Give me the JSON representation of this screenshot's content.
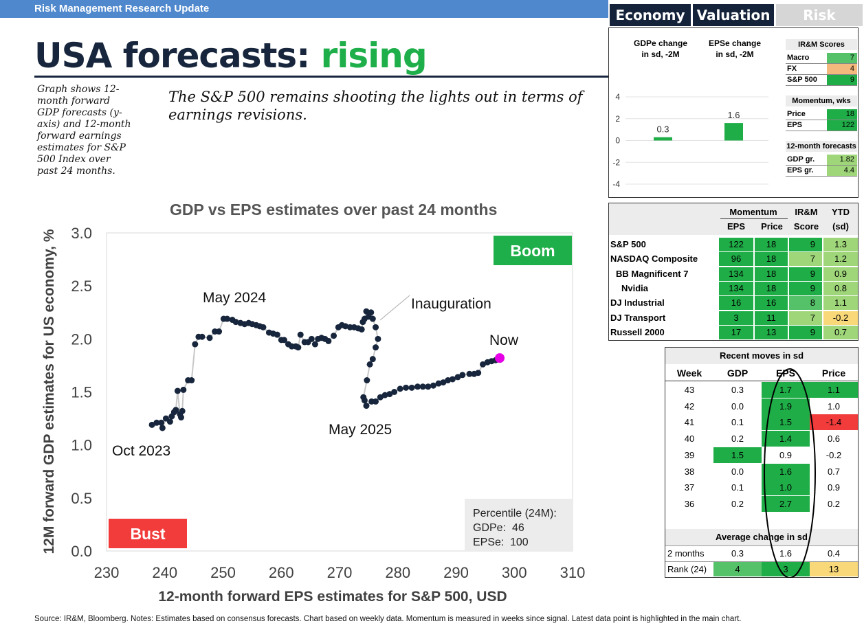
{
  "header": {
    "banner": "Risk Management Research Update",
    "title_main": "USA forecasts: ",
    "title_accent": "rising",
    "note": "Graph shows 12-month forward GDP forecasts (y-axis) and 12-month forward earnings estimates for S&P 500 Index over past 24 months.",
    "headline": "The S&P 500 remains shooting the lights out in terms of earnings revisions."
  },
  "tabs": [
    {
      "label": "Economy"
    },
    {
      "label": "Valuation"
    },
    {
      "label": "Risk"
    }
  ],
  "mini_chart": {
    "series": [
      {
        "name": "GDPe change in sd, -2M",
        "label_line1": "GDPe change",
        "label_line2": "in sd, -2M",
        "value": 0.3,
        "value_label": "0.3"
      },
      {
        "name": "EPSe change in sd, -2M",
        "label_line1": "EPSe change",
        "label_line2": "in sd, -2M",
        "value": 1.6,
        "value_label": "1.6"
      }
    ],
    "yticks": [
      "4",
      "2",
      "0",
      "-2",
      "-4"
    ],
    "ylim": [
      -4,
      4
    ]
  },
  "scores": {
    "irm_title": "IR&M Scores",
    "irm_rows": [
      {
        "label": "Macro",
        "value": "7"
      },
      {
        "label": "FX",
        "value": "4"
      },
      {
        "label": "S&P 500",
        "value": "9"
      }
    ],
    "momentum_title": "Momentum, wks",
    "momentum_rows": [
      {
        "label": "Price",
        "value": "18"
      },
      {
        "label": "EPS",
        "value": "122"
      }
    ],
    "forecast_title": "12-month forecasts",
    "forecast_rows": [
      {
        "label": "GDP gr.",
        "value": "1.82"
      },
      {
        "label": "EPS gr.",
        "value": "4.4"
      }
    ]
  },
  "index_table": {
    "group_momentum": "Momentum",
    "group_irm": "IR&M",
    "group_ytd": "YTD",
    "sub_eps": "EPS",
    "sub_price": "Price",
    "sub_score": "Score",
    "sub_sd": "(sd)",
    "rows": [
      {
        "name": "S&P 500",
        "eps": "122",
        "price": "18",
        "score": "9",
        "ytd": "1.3"
      },
      {
        "name": "NASDAQ Composite",
        "eps": "96",
        "price": "18",
        "score": "7",
        "ytd": "1.2"
      },
      {
        "name": "BB Magnificent 7",
        "eps": "134",
        "price": "18",
        "score": "9",
        "ytd": "0.9"
      },
      {
        "name": "Nvidia",
        "eps": "134",
        "price": "18",
        "score": "9",
        "ytd": "0.8"
      },
      {
        "name": "DJ Industrial",
        "eps": "16",
        "price": "16",
        "score": "8",
        "ytd": "1.1"
      },
      {
        "name": "DJ Transport",
        "eps": "3",
        "price": "11",
        "score": "7",
        "ytd": "-0.2"
      },
      {
        "name": "Russell 2000",
        "eps": "17",
        "price": "13",
        "score": "9",
        "ytd": "0.7"
      }
    ]
  },
  "moves_table": {
    "title": "Recent moves in sd",
    "col_week": "Week",
    "col_gdp": "GDP",
    "col_eps": "EPS",
    "col_price": "Price",
    "rows": [
      {
        "week": "43",
        "gdp": "0.3",
        "eps": "1.7",
        "price": "1.1"
      },
      {
        "week": "42",
        "gdp": "0.0",
        "eps": "1.9",
        "price": "1.0"
      },
      {
        "week": "41",
        "gdp": "0.1",
        "eps": "1.5",
        "price": "-1.4"
      },
      {
        "week": "40",
        "gdp": "0.2",
        "eps": "1.4",
        "price": "0.6"
      },
      {
        "week": "39",
        "gdp": "1.5",
        "eps": "0.9",
        "price": "-0.2"
      },
      {
        "week": "38",
        "gdp": "0.0",
        "eps": "1.6",
        "price": "0.7"
      },
      {
        "week": "37",
        "gdp": "0.1",
        "eps": "1.0",
        "price": "0.9"
      },
      {
        "week": "36",
        "gdp": "0.2",
        "eps": "2.7",
        "price": "0.2"
      }
    ],
    "avg_title": "Average change in sd",
    "avg_rows": [
      {
        "label": "2 months",
        "gdp": "0.3",
        "eps": "1.6",
        "price": "0.4"
      },
      {
        "label": "Rank (24)",
        "gdp": "4",
        "eps": "3",
        "price": "13"
      }
    ]
  },
  "chart_data": {
    "type": "scatter",
    "title": "GDP vs EPS estimates over past 24 months",
    "xlabel": "12-month forward EPS estimates for S&P 500, USD",
    "ylabel": "12M forward GDP estimates for US economy, %",
    "xlim": [
      230,
      310
    ],
    "ylim": [
      0,
      3
    ],
    "xticks": [
      230,
      240,
      250,
      260,
      270,
      280,
      290,
      300,
      310
    ],
    "yticks": [
      "0.0",
      "0.5",
      "1.0",
      "1.5",
      "2.0",
      "2.5",
      "3.0"
    ],
    "grid": false,
    "quadrant_labels": {
      "top_right": "Boom",
      "bottom_left": "Bust"
    },
    "annotations": [
      {
        "text": "Oct 2023"
      },
      {
        "text": "May 2024"
      },
      {
        "text": "Inauguration"
      },
      {
        "text": "Now"
      },
      {
        "text": "May 2025"
      }
    ],
    "percentile_box": {
      "title": "Percentile (24M):",
      "gdp_label": "GDPe:",
      "gdp_value": "46",
      "eps_label": "EPSe:",
      "eps_value": "100"
    },
    "points": [
      [
        237.8,
        1.19
      ],
      [
        238.6,
        1.21
      ],
      [
        239.4,
        1.21
      ],
      [
        239.6,
        1.16
      ],
      [
        240.2,
        1.25
      ],
      [
        240.9,
        1.22
      ],
      [
        241.2,
        1.27
      ],
      [
        241.6,
        1.31
      ],
      [
        241.9,
        1.33
      ],
      [
        242.2,
        1.51
      ],
      [
        242.6,
        1.29
      ],
      [
        242.8,
        1.26
      ],
      [
        243.0,
        1.32
      ],
      [
        243.2,
        1.52
      ],
      [
        244.0,
        1.61
      ],
      [
        244.6,
        1.61
      ],
      [
        245.2,
        1.95
      ],
      [
        245.8,
        2.02
      ],
      [
        246.4,
        2.02
      ],
      [
        247.7,
        2.01
      ],
      [
        248.6,
        2.07
      ],
      [
        249.3,
        2.07
      ],
      [
        250.1,
        2.19
      ],
      [
        250.7,
        2.19
      ],
      [
        251.6,
        2.18
      ],
      [
        252.2,
        2.16
      ],
      [
        253.0,
        2.15
      ],
      [
        253.7,
        2.14
      ],
      [
        254.4,
        2.15
      ],
      [
        255.0,
        2.14
      ],
      [
        255.7,
        2.13
      ],
      [
        256.3,
        2.12
      ],
      [
        256.9,
        2.11
      ],
      [
        257.9,
        2.06
      ],
      [
        258.6,
        2.05
      ],
      [
        259.3,
        2.04
      ],
      [
        260.0,
        1.99
      ],
      [
        260.5,
        1.99
      ],
      [
        261.2,
        1.95
      ],
      [
        261.8,
        1.93
      ],
      [
        262.5,
        1.93
      ],
      [
        262.9,
        1.92
      ],
      [
        263.3,
        2.04
      ],
      [
        264.0,
        1.97
      ],
      [
        264.6,
        1.97
      ],
      [
        265.2,
        2.0
      ],
      [
        265.8,
        1.95
      ],
      [
        266.3,
        2.0
      ],
      [
        266.9,
        2.01
      ],
      [
        267.5,
        2.0
      ],
      [
        268.1,
        1.98
      ],
      [
        269.0,
        2.03
      ],
      [
        269.8,
        2.11
      ],
      [
        270.4,
        2.13
      ],
      [
        271.0,
        2.12
      ],
      [
        271.8,
        2.11
      ],
      [
        272.5,
        2.11
      ],
      [
        273.2,
        2.1
      ],
      [
        273.8,
        2.09
      ],
      [
        274.0,
        2.16
      ],
      [
        274.3,
        2.19
      ],
      [
        274.6,
        2.26
      ],
      [
        275.0,
        2.21
      ],
      [
        275.4,
        2.25
      ],
      [
        275.7,
        2.19
      ],
      [
        276.2,
        2.11
      ],
      [
        276.6,
        2.0
      ],
      [
        276.2,
        1.92
      ],
      [
        275.7,
        1.81
      ],
      [
        275.2,
        1.76
      ],
      [
        274.7,
        1.61
      ],
      [
        274.1,
        1.45
      ],
      [
        274.3,
        1.42
      ],
      [
        274.6,
        1.37
      ],
      [
        275.5,
        1.41
      ],
      [
        276.2,
        1.41
      ],
      [
        277.0,
        1.45
      ],
      [
        277.8,
        1.47
      ],
      [
        278.6,
        1.48
      ],
      [
        279.4,
        1.5
      ],
      [
        280.4,
        1.53
      ],
      [
        281.4,
        1.54
      ],
      [
        282.4,
        1.54
      ],
      [
        283.4,
        1.55
      ],
      [
        284.3,
        1.55
      ],
      [
        285.2,
        1.55
      ],
      [
        286.1,
        1.56
      ],
      [
        287.0,
        1.58
      ],
      [
        287.8,
        1.59
      ],
      [
        288.6,
        1.61
      ],
      [
        289.4,
        1.62
      ],
      [
        290.3,
        1.64
      ],
      [
        291.1,
        1.66
      ],
      [
        292.3,
        1.67
      ],
      [
        293.1,
        1.67
      ],
      [
        293.8,
        1.68
      ],
      [
        294.6,
        1.76
      ],
      [
        295.4,
        1.78
      ],
      [
        296.1,
        1.79
      ],
      [
        296.8,
        1.8
      ],
      [
        297.5,
        1.82
      ]
    ]
  },
  "footer": "Source: IR&M, Bloomberg. Notes: Estimates based on consensus forecasts. Chart based on weekly data. Momentum is measured in weeks since signal. Latest data point is highlighted in the main chart.",
  "colors": {
    "banner": "#4f88cc",
    "title_dark": "#17263c",
    "accent_green": "#1faf4a",
    "tab_dark": "#15233a",
    "point": "#17263c",
    "latest_point": "#e600e6",
    "boom": "#1faf4a",
    "bust": "#f23b3b"
  }
}
